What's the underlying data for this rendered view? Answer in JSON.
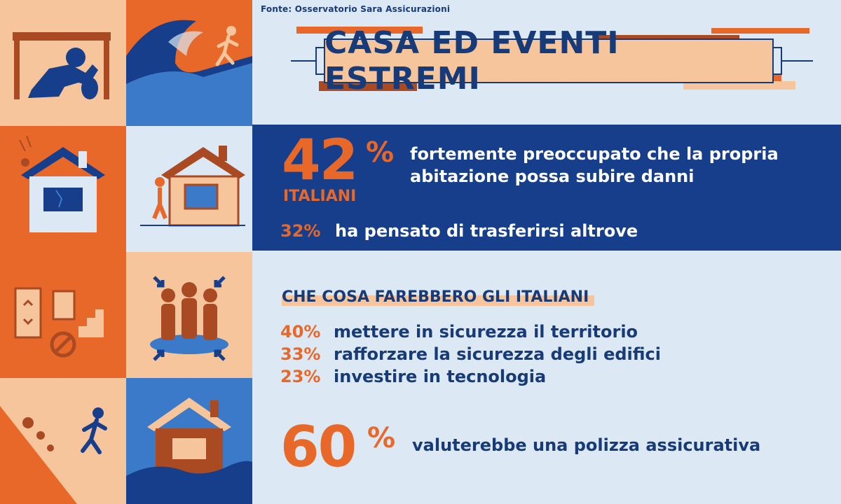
{
  "source": "Fonte: Osservatorio Sara Assicurazioni",
  "title": "CASA ED EVENTI ESTREMI",
  "concern": {
    "percent": "42",
    "unit": "%",
    "subject": "ITALIANI",
    "text": "fortemente preoccupato che la propria abitazione possa subire danni"
  },
  "relocate": {
    "percent": "32%",
    "text": "ha pensato di trasferirsi altrove"
  },
  "actions": {
    "heading": "CHE COSA FAREBBERO GLI ITALIANI",
    "items": [
      {
        "percent": "40%",
        "text": "mettere in sicurezza il territorio"
      },
      {
        "percent": "33%",
        "text": "rafforzare la sicurezza degli edifici"
      },
      {
        "percent": "23%",
        "text": "investire in tecnologia"
      }
    ]
  },
  "policy": {
    "percent": "60",
    "unit": "%",
    "text": "valuterebbe una polizza assicurativa"
  },
  "colors": {
    "navy": "#163e8a",
    "orange": "#e8682a",
    "peach": "#f6c59c",
    "light_blue": "#dce8f3",
    "sky": "#3a7ac9",
    "rust": "#a94a22"
  },
  "tiles": [
    {
      "name": "earthquake-table-icon"
    },
    {
      "name": "tsunami-runner-icon"
    },
    {
      "name": "falling-rocks-house-icon"
    },
    {
      "name": "cracked-house-icon"
    },
    {
      "name": "elevator-stairs-icon"
    },
    {
      "name": "gathering-point-icon"
    },
    {
      "name": "landslide-runner-icon"
    },
    {
      "name": "flooded-house-icon"
    }
  ]
}
